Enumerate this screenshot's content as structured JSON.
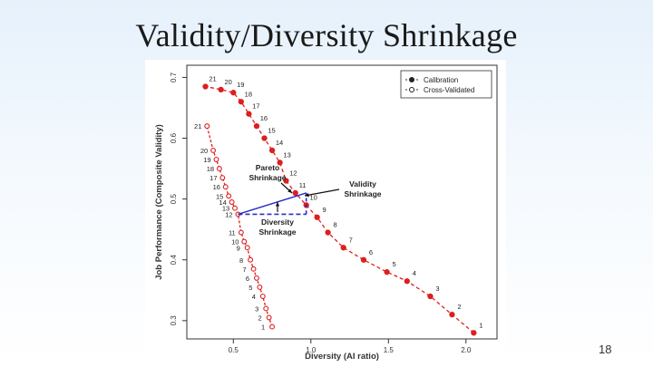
{
  "slide": {
    "title": "Validity/Diversity Shrinkage",
    "page_number": "18"
  },
  "chart_data": {
    "type": "line",
    "title": "",
    "xlabel": "Diversity (AI ratio)",
    "ylabel": "Job Performance (Composite Validity)",
    "xlim": [
      0.2,
      2.2
    ],
    "ylim": [
      0.27,
      0.72
    ],
    "xticks": [
      "0.5",
      "1.0",
      "1.5",
      "2.0"
    ],
    "yticks": [
      "0.3",
      "0.4",
      "0.5",
      "0.6",
      "0.7"
    ],
    "legend": {
      "position": "top-right",
      "entries": [
        "Calibration",
        "Cross-Validated"
      ]
    },
    "series": [
      {
        "name": "Calibration",
        "marker": "filled",
        "color": "#dd1f1f",
        "labels": [
          "1",
          "2",
          "3",
          "4",
          "5",
          "6",
          "7",
          "8",
          "9",
          "10",
          "11",
          "12",
          "13",
          "14",
          "15",
          "16",
          "17",
          "18",
          "19",
          "20",
          "21"
        ],
        "x": [
          2.05,
          1.91,
          1.77,
          1.62,
          1.49,
          1.34,
          1.21,
          1.11,
          1.04,
          0.97,
          0.9,
          0.84,
          0.8,
          0.75,
          0.7,
          0.65,
          0.6,
          0.55,
          0.5,
          0.42,
          0.32
        ],
        "y": [
          0.28,
          0.31,
          0.34,
          0.365,
          0.38,
          0.4,
          0.42,
          0.445,
          0.47,
          0.49,
          0.51,
          0.53,
          0.56,
          0.58,
          0.6,
          0.62,
          0.64,
          0.66,
          0.675,
          0.68,
          0.685
        ]
      },
      {
        "name": "Cross-Validated",
        "marker": "open",
        "color": "#dd1f1f",
        "labels": [
          "1",
          "2",
          "3",
          "4",
          "5",
          "6",
          "7",
          "8",
          "9",
          "10",
          "11",
          "12",
          "13",
          "14",
          "15",
          "16",
          "17",
          "18",
          "19",
          "20",
          "21"
        ],
        "x": [
          0.75,
          0.73,
          0.71,
          0.69,
          0.67,
          0.65,
          0.63,
          0.61,
          0.59,
          0.57,
          0.55,
          0.53,
          0.51,
          0.49,
          0.47,
          0.45,
          0.43,
          0.41,
          0.39,
          0.37,
          0.33
        ],
        "y": [
          0.29,
          0.305,
          0.32,
          0.34,
          0.355,
          0.37,
          0.385,
          0.4,
          0.42,
          0.43,
          0.445,
          0.475,
          0.485,
          0.495,
          0.505,
          0.52,
          0.535,
          0.55,
          0.565,
          0.58,
          0.62
        ]
      }
    ],
    "annotations": [
      {
        "text": "Pareto Shrinkage",
        "lines": [
          "Pareto",
          "Shrinkage"
        ]
      },
      {
        "text": "Validity Shrinkage",
        "lines": [
          "Validity",
          "Shrinkage"
        ]
      },
      {
        "text": "Diversity Shrinkage",
        "lines": [
          "Diversity",
          "Shrinkage"
        ]
      }
    ]
  }
}
